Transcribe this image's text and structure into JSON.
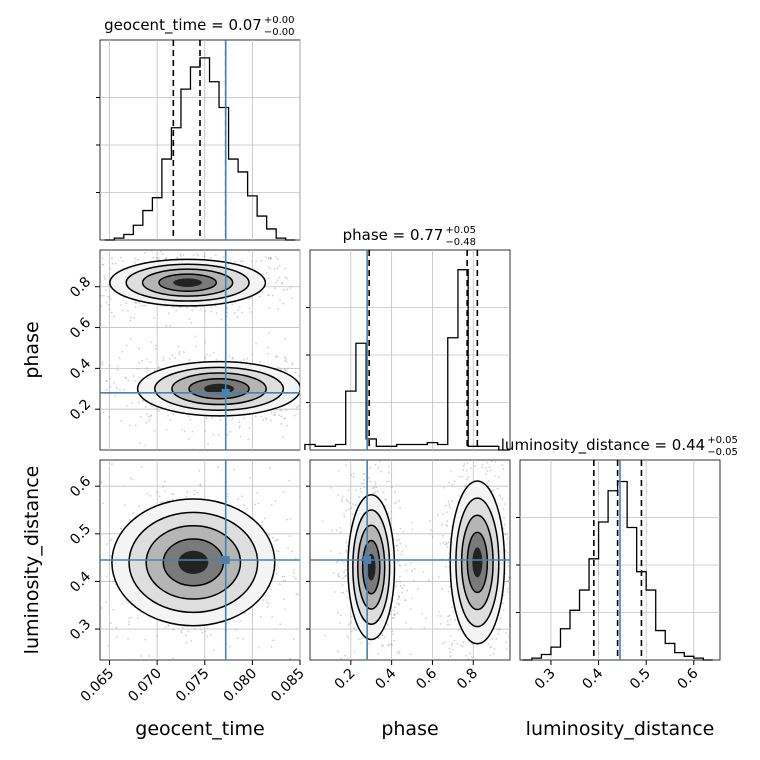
{
  "chart_data": {
    "type": "corner",
    "parameters": [
      "geocent_time",
      "phase",
      "luminosity_distance"
    ],
    "truths": {
      "geocent_time": 0.0772,
      "phase": 0.28,
      "luminosity_distance": 0.445
    },
    "colors": {
      "truth": "#4682b4",
      "hist": "#000000",
      "grid": "#c0c0c0",
      "points": "#9a9a9a"
    },
    "titles": [
      {
        "param": "geocent_time",
        "base": "geocent_time = 0.07",
        "sup": "+0.00",
        "sub": "−0.00"
      },
      {
        "param": "phase",
        "base": "phase = 0.77",
        "sup": "+0.05",
        "sub": "−0.48"
      },
      {
        "param": "luminosity_distance",
        "base": "luminosity_distance = 0.44",
        "sup": "+0.05",
        "sub": "−0.05"
      }
    ],
    "axes": {
      "geocent_time": {
        "range": [
          0.064,
          0.085
        ],
        "ticks": [
          0.065,
          0.07,
          0.075,
          0.08,
          0.085
        ],
        "tick_labels": [
          "0.065",
          "0.070",
          "0.075",
          "0.080",
          "0.085"
        ],
        "label": "geocent_time"
      },
      "phase": {
        "range": [
          0.0,
          0.98
        ],
        "ticks": [
          0.2,
          0.4,
          0.6,
          0.8
        ],
        "tick_labels": [
          "0.2",
          "0.4",
          "0.6",
          "0.8"
        ],
        "label": "phase"
      },
      "luminosity_distance": {
        "range": [
          0.235,
          0.655
        ],
        "ticks": [
          0.3,
          0.4,
          0.5,
          0.6
        ],
        "tick_labels": [
          "0.3",
          "0.4",
          "0.5",
          "0.6"
        ],
        "label": "luminosity_distance"
      }
    },
    "histograms": {
      "geocent_time": {
        "bins": [
          0.065,
          0.066,
          0.067,
          0.068,
          0.069,
          0.07,
          0.071,
          0.072,
          0.073,
          0.074,
          0.075,
          0.076,
          0.077,
          0.078,
          0.079,
          0.08,
          0.081,
          0.082,
          0.083,
          0.084
        ],
        "counts": [
          0.0,
          0.01,
          0.03,
          0.08,
          0.16,
          0.23,
          0.44,
          0.61,
          0.82,
          0.94,
          0.99,
          0.86,
          0.72,
          0.44,
          0.37,
          0.24,
          0.13,
          0.06,
          0.01,
          0.0
        ],
        "quantiles": [
          0.0717,
          0.0745,
          0.0772
        ]
      },
      "phase": {
        "bins": [
          0.0,
          0.05,
          0.1,
          0.15,
          0.2,
          0.25,
          0.3,
          0.35,
          0.4,
          0.45,
          0.5,
          0.55,
          0.6,
          0.65,
          0.7,
          0.75,
          0.8,
          0.85,
          0.9,
          0.95
        ],
        "counts": [
          0.03,
          0.02,
          0.02,
          0.03,
          0.32,
          0.58,
          0.06,
          0.02,
          0.02,
          0.03,
          0.03,
          0.03,
          0.04,
          0.03,
          0.61,
          0.98,
          0.02,
          0.02,
          0.02,
          0.0
        ],
        "quantiles": [
          0.29,
          0.77,
          0.82
        ]
      },
      "luminosity_distance": {
        "bins": [
          0.25,
          0.27,
          0.29,
          0.31,
          0.33,
          0.35,
          0.37,
          0.39,
          0.41,
          0.43,
          0.45,
          0.47,
          0.49,
          0.51,
          0.53,
          0.55,
          0.57,
          0.59,
          0.61,
          0.63
        ],
        "counts": [
          0.0,
          0.01,
          0.03,
          0.07,
          0.17,
          0.27,
          0.38,
          0.55,
          0.75,
          0.92,
          0.97,
          0.72,
          0.48,
          0.38,
          0.16,
          0.09,
          0.04,
          0.02,
          0.01,
          0.0
        ],
        "quantiles": [
          0.39,
          0.44,
          0.49
        ]
      }
    },
    "contour_modes": [
      {
        "x": "geocent_time",
        "y": "phase",
        "cx": 0.0732,
        "cy": 0.82,
        "rx": 0.0043,
        "ry": 0.06
      },
      {
        "x": "geocent_time",
        "y": "phase",
        "cx": 0.0765,
        "cy": 0.3,
        "rx": 0.0045,
        "ry": 0.07
      },
      {
        "x": "geocent_time",
        "y": "luminosity_distance",
        "cx": 0.0738,
        "cy": 0.44,
        "rx": 0.0045,
        "ry": 0.07
      },
      {
        "x": "phase",
        "y": "luminosity_distance",
        "cx": 0.3,
        "cy": 0.43,
        "rx": 0.06,
        "ry": 0.08
      },
      {
        "x": "phase",
        "y": "luminosity_distance",
        "cx": 0.82,
        "cy": 0.44,
        "rx": 0.07,
        "ry": 0.09
      }
    ]
  }
}
